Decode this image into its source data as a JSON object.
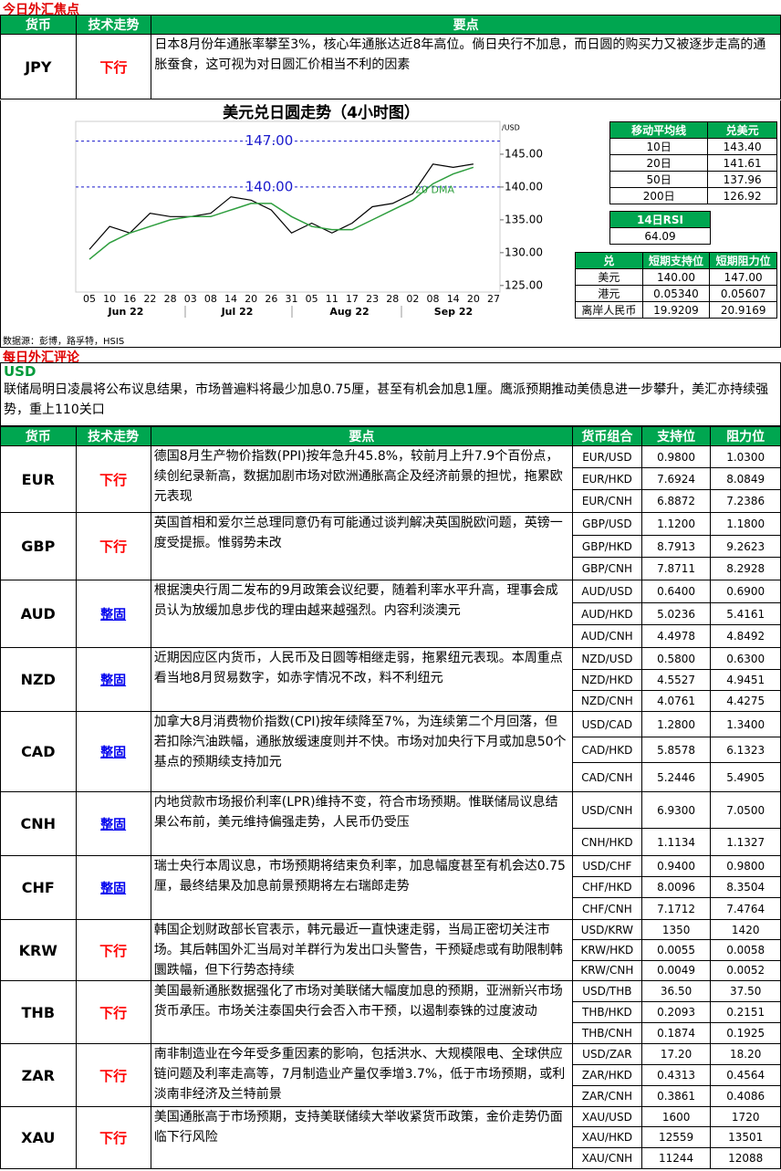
{
  "focus": {
    "title": "今日外汇焦点",
    "headers": [
      "货币",
      "技术走势",
      "要点"
    ],
    "rows": [
      {
        "currency": "JPY",
        "trend": "下行",
        "text": "日本8月份年通胀率攀至3%，核心年通胀达近8年高位。倘日央行不加息，而日圆的购买力又被逐步走高的通胀蚕食，这可视为对日圆汇价相当不利的因素"
      }
    ]
  },
  "usdjpy_chart": {
    "type": "line",
    "title": "美元兑日圆走势（4小时图）",
    "unit_label": "/USD",
    "categories": [
      "05",
      "10",
      "16",
      "22",
      "28",
      "03",
      "08",
      "14",
      "20",
      "26",
      "31",
      "05",
      "11",
      "17",
      "23",
      "28",
      "02",
      "08",
      "14",
      "20",
      "27"
    ],
    "months": [
      "Jun 22",
      "Jul 22",
      "Aug 22",
      "Sep 22"
    ],
    "series": [
      {
        "name": "USDJPY",
        "color": "#000000",
        "values": [
          130.5,
          134,
          133,
          136,
          135.5,
          135.5,
          136,
          138.5,
          138,
          136.5,
          133,
          134.5,
          133,
          134.5,
          137,
          137.5,
          139,
          143.5,
          143,
          143.5,
          null
        ]
      },
      {
        "name": "20 DMA",
        "color": "#2e9e3e",
        "values": [
          129,
          131.5,
          133,
          134,
          135,
          135.5,
          135.5,
          136.5,
          137.5,
          137.5,
          135.5,
          134,
          133.5,
          133.5,
          135,
          136.5,
          138,
          140.5,
          142,
          143,
          null
        ]
      }
    ],
    "reference_lines": [
      {
        "value": 147,
        "label": "147.00"
      },
      {
        "value": 140,
        "label": "140.00"
      }
    ],
    "ylim": [
      124,
      150
    ],
    "yticks": [
      {
        "value": 125,
        "label": "125.00"
      },
      {
        "value": 130,
        "label": "130.00"
      },
      {
        "value": 135,
        "label": "135.00"
      },
      {
        "value": 140,
        "label": "140.00"
      },
      {
        "value": 145,
        "label": "145.00"
      }
    ]
  },
  "moving_averages": {
    "headers": [
      "移动平均线",
      "兑美元"
    ],
    "rows": [
      [
        "10日",
        "143.40"
      ],
      [
        "20日",
        "141.61"
      ],
      [
        "50日",
        "137.96"
      ],
      [
        "200日",
        "126.92"
      ]
    ]
  },
  "rsi": {
    "label": "14日RSI",
    "value": "64.09"
  },
  "support_resistance": {
    "headers": [
      "兑",
      "短期支持位",
      "短期阻力位"
    ],
    "rows": [
      [
        "美元",
        "140.00",
        "147.00"
      ],
      [
        "港元",
        "0.05340",
        "0.05607"
      ],
      [
        "离岸人民币",
        "19.9209",
        "20.9169"
      ]
    ]
  },
  "source": "数据源：彭博，路孚特，HSIS",
  "commentary": {
    "title": "每日外汇评论",
    "usd_label": "USD",
    "usd_text": "联储局明日凌晨将公布议息结果，市场普遍料将最少加息0.75厘，甚至有机会加息1厘。鹰派预期推动美债息进一步攀升，美汇亦持续强势，重上110关口",
    "headers": [
      "货币",
      "技术走势",
      "要点",
      "货币组合",
      "支持位",
      "阻力位"
    ],
    "rows": [
      {
        "currency": "EUR",
        "trend": "下行",
        "text": "德国8月生产物价指数(PPI)按年急升45.8%，较前月上升7.9个百份点，续创纪录新高，数据加剧市场对欧洲通胀高企及经济前景的担忧，拖累欧元表现",
        "pairs": [
          [
            "EUR/USD",
            "0.9800",
            "1.0300"
          ],
          [
            "EUR/HKD",
            "7.6924",
            "8.0849"
          ],
          [
            "EUR/CNH",
            "6.8872",
            "7.2386"
          ]
        ]
      },
      {
        "currency": "GBP",
        "trend": "下行",
        "text": "英国首相和爱尔兰总理同意仍有可能通过谈判解决英国脱欧问题，英镑一度受提振。惟弱势未改",
        "pairs": [
          [
            "GBP/USD",
            "1.1200",
            "1.1800"
          ],
          [
            "GBP/HKD",
            "8.7913",
            "9.2623"
          ],
          [
            "GBP/CNH",
            "7.8711",
            "8.2928"
          ]
        ]
      },
      {
        "currency": "AUD",
        "trend": "整固",
        "text": "根据澳央行周二发布的9月政策会议纪要，随着利率水平升高，理事会成员认为放缓加息步伐的理由越来越强烈。内容利淡澳元",
        "pairs": [
          [
            "AUD/USD",
            "0.6400",
            "0.6900"
          ],
          [
            "AUD/HKD",
            "5.0236",
            "5.4161"
          ],
          [
            "AUD/CNH",
            "4.4978",
            "4.8492"
          ]
        ]
      },
      {
        "currency": "NZD",
        "trend": "整固",
        "text": "近期因应区内货币，人民币及日圆等相继走弱，拖累纽元表现。本周重点看当地8月贸易数字，如赤字情况不改，料不利纽元",
        "pairs": [
          [
            "NZD/USD",
            "0.5800",
            "0.6300"
          ],
          [
            "NZD/HKD",
            "4.5527",
            "4.9451"
          ],
          [
            "NZD/CNH",
            "4.0761",
            "4.4275"
          ]
        ]
      },
      {
        "currency": "CAD",
        "trend": "整固",
        "text": "加拿大8月消费物价指数(CPI)按年续降至7%，为连续第二个月回落，但若扣除汽油跌幅，通胀放缓速度则并不快。市场对加央行下月或加息50个基点的预期续支持加元",
        "pairs": [
          [
            "USD/CAD",
            "1.2800",
            "1.3400"
          ],
          [
            "CAD/HKD",
            "5.8578",
            "6.1323"
          ],
          [
            "CAD/CNH",
            "5.2446",
            "5.4905"
          ]
        ]
      },
      {
        "currency": "CNH",
        "trend": "整固",
        "text": "内地贷款市场报价利率(LPR)维持不变，符合市场预期。惟联储局议息结果公布前，美元维持偏强走势，人民币仍受压",
        "pairs": [
          [
            "USD/CNH",
            "6.9300",
            "7.0500"
          ],
          [
            "CNH/HKD",
            "1.1134",
            "1.1327"
          ]
        ]
      },
      {
        "currency": "CHF",
        "trend": "整固",
        "text": "瑞士央行本周议息，市场预期将结束负利率，加息幅度甚至有机会达0.75厘，最终结果及加息前景预期将左右瑞郎走势",
        "pairs": [
          [
            "USD/CHF",
            "0.9400",
            "0.9800"
          ],
          [
            "CHF/HKD",
            "8.0096",
            "8.3504"
          ],
          [
            "CHF/CNH",
            "7.1712",
            "7.4764"
          ]
        ]
      },
      {
        "currency": "KRW",
        "trend": "下行",
        "text": "韩国企划财政部长官表示，韩元最近一直快速走弱，当局正密切关注市场。其后韩国外汇当局对羊群行为发出口头警告，干预疑虑或有助限制韩圜跌幅，但下行势态持续",
        "pairs": [
          [
            "USD/KRW",
            "1350",
            "1420"
          ],
          [
            "KRW/HKD",
            "0.0055",
            "0.0058"
          ],
          [
            "KRW/CNH",
            "0.0049",
            "0.0052"
          ]
        ]
      },
      {
        "currency": "THB",
        "trend": "下行",
        "text": "美国最新通胀数据强化了市场对美联储大幅度加息的预期，亚洲新兴市场货币承压。市场关注泰国央行会否入市干预，以遏制泰铢的过度波动",
        "pairs": [
          [
            "USD/THB",
            "36.50",
            "37.50"
          ],
          [
            "THB/HKD",
            "0.2093",
            "0.2151"
          ],
          [
            "THB/CNH",
            "0.1874",
            "0.1925"
          ]
        ]
      },
      {
        "currency": "ZAR",
        "trend": "下行",
        "text": "南非制造业在今年受多重因素的影响，包括洪水、大规模限电、全球供应链问题及利率走高等，7月制造业产量仅季增3.7%，低于市场预期，或利淡南非经济及兰特前景",
        "pairs": [
          [
            "USD/ZAR",
            "17.20",
            "18.20"
          ],
          [
            "ZAR/HKD",
            "0.4313",
            "0.4564"
          ],
          [
            "ZAR/CNH",
            "0.3861",
            "0.4086"
          ]
        ]
      },
      {
        "currency": "XAU",
        "trend": "下行",
        "text": "美国通胀高于市场预期，支持美联储续大举收紧货币政策，金价走势仍面临下行风险",
        "pairs": [
          [
            "XAU/USD",
            "1600",
            "1720"
          ],
          [
            "XAU/HKD",
            "12559",
            "13501"
          ],
          [
            "XAU/CNH",
            "11244",
            "12088"
          ]
        ]
      }
    ]
  }
}
